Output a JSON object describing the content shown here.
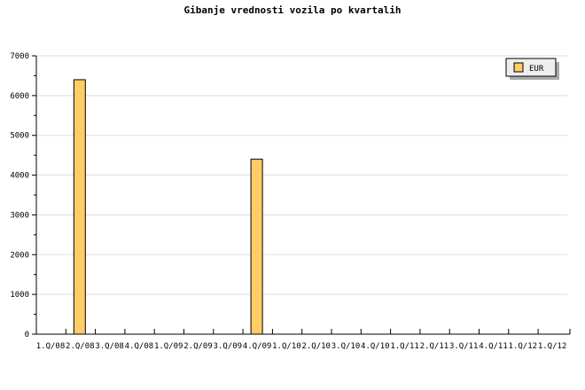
{
  "chart_data": {
    "type": "bar",
    "title": "Gibanje vrednosti vozila po kvartalih",
    "categories": [
      "1.Q/08",
      "2.Q/08",
      "3.Q/08",
      "4.Q/08",
      "1.Q/09",
      "2.Q/09",
      "3.Q/09",
      "4.Q/09",
      "1.Q/10",
      "2.Q/10",
      "3.Q/10",
      "4.Q/10",
      "1.Q/11",
      "2.Q/11",
      "3.Q/11",
      "4.Q/11",
      "1.Q/12",
      "1.Q/12"
    ],
    "series": [
      {
        "name": "EUR",
        "values": [
          0,
          6400,
          0,
          0,
          0,
          0,
          0,
          4400,
          0,
          0,
          0,
          0,
          0,
          0,
          0,
          0,
          0,
          0
        ],
        "color": "#ffcc66"
      }
    ],
    "ylim": [
      0,
      7000
    ],
    "yticks": [
      0,
      1000,
      2000,
      3000,
      4000,
      5000,
      6000,
      7000
    ],
    "grid": true,
    "legend": "top-right"
  }
}
